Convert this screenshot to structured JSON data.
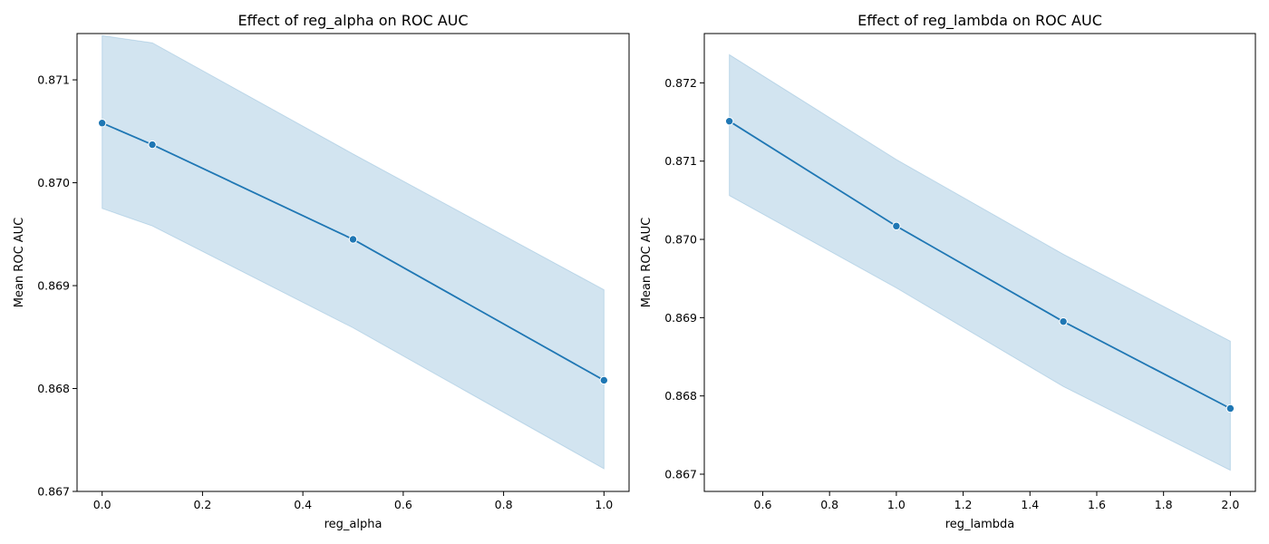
{
  "chart_data": [
    {
      "type": "line",
      "title": "Effect of reg_alpha on ROC AUC",
      "xlabel": "reg_alpha",
      "ylabel": "Mean ROC AUC",
      "xlim": [
        -0.05,
        1.05
      ],
      "ylim": [
        0.867,
        0.87145
      ],
      "xticks": [
        0.0,
        0.2,
        0.4,
        0.6,
        0.8,
        1.0
      ],
      "xtick_labels": [
        "0.0",
        "0.2",
        "0.4",
        "0.6",
        "0.8",
        "1.0"
      ],
      "yticks": [
        0.867,
        0.868,
        0.869,
        0.87,
        0.871
      ],
      "ytick_labels": [
        "0.867",
        "0.868",
        "0.869",
        "0.870",
        "0.871"
      ],
      "grid": false,
      "series": [
        {
          "x": [
            0.0,
            0.1,
            0.5,
            1.0
          ],
          "y": [
            0.87058,
            0.87037,
            0.86945,
            0.86808
          ],
          "ci_lower": [
            0.86975,
            0.86958,
            0.86859,
            0.86722
          ],
          "ci_upper": [
            0.87143,
            0.87136,
            0.87028,
            0.86896
          ],
          "color": "#1f77b4"
        }
      ]
    },
    {
      "type": "line",
      "title": "Effect of reg_lambda on ROC AUC",
      "xlabel": "reg_lambda",
      "ylabel": "Mean ROC AUC",
      "xlim": [
        0.425,
        2.075
      ],
      "ylim": [
        0.86678,
        0.87263
      ],
      "xticks": [
        0.6,
        0.8,
        1.0,
        1.2,
        1.4,
        1.6,
        1.8,
        2.0
      ],
      "xtick_labels": [
        "0.6",
        "0.8",
        "1.0",
        "1.2",
        "1.4",
        "1.6",
        "1.8",
        "2.0"
      ],
      "yticks": [
        0.867,
        0.868,
        0.869,
        0.87,
        0.871,
        0.872
      ],
      "ytick_labels": [
        "0.867",
        "0.868",
        "0.869",
        "0.870",
        "0.871",
        "0.872"
      ],
      "grid": false,
      "series": [
        {
          "x": [
            0.5,
            1.0,
            1.5,
            2.0
          ],
          "y": [
            0.87151,
            0.87017,
            0.86895,
            0.86784
          ],
          "ci_lower": [
            0.87056,
            0.86938,
            0.86812,
            0.86705
          ],
          "ci_upper": [
            0.87236,
            0.87102,
            0.86981,
            0.8687
          ],
          "color": "#1f77b4"
        }
      ]
    }
  ]
}
